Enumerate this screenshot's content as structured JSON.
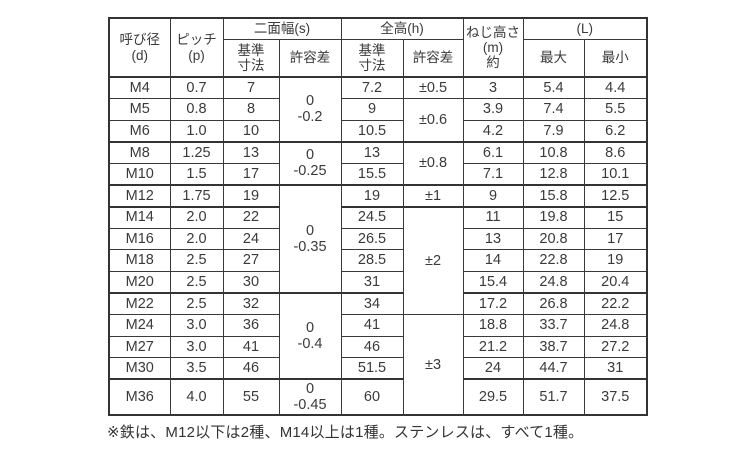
{
  "colors": {
    "background": "#ffffff",
    "text": "#3a3a3a",
    "border": "#333333"
  },
  "table": {
    "header_rows": [
      [
        {
          "text": "呼び径\n(d)",
          "rowspan": 2
        },
        {
          "text": "ピッチ\n(p)",
          "rowspan": 2
        },
        {
          "text": "二面幅(s)",
          "colspan": 2
        },
        {
          "text": "全高(h)",
          "colspan": 2
        },
        {
          "text": "ねじ高さ\n(m)\n約",
          "rowspan": 2
        },
        {
          "text": "(L)",
          "colspan": 2
        }
      ],
      [
        {
          "text": "基準\n寸法"
        },
        {
          "text": "許容差"
        },
        {
          "text": "基準\n寸法"
        },
        {
          "text": "許容差"
        },
        {
          "text": "最大"
        },
        {
          "text": "最小"
        }
      ]
    ],
    "rows": [
      {
        "name": "M4",
        "thick_top": false,
        "tall": false,
        "cells": [
          {
            "text": "M4"
          },
          {
            "text": "0.7"
          },
          {
            "text": "7"
          },
          {
            "text": "0\n-0.2",
            "rowspan": 3
          },
          {
            "text": "7.2"
          },
          {
            "text": "±0.5"
          },
          {
            "text": "3"
          },
          {
            "text": "5.4"
          },
          {
            "text": "4.4"
          }
        ]
      },
      {
        "name": "M5",
        "thick_top": false,
        "tall": false,
        "cells": [
          {
            "text": "M5"
          },
          {
            "text": "0.8"
          },
          {
            "text": "8"
          },
          {
            "text": "9"
          },
          {
            "text": "±0.6",
            "rowspan": 2
          },
          {
            "text": "3.9"
          },
          {
            "text": "7.4"
          },
          {
            "text": "5.5"
          }
        ]
      },
      {
        "name": "M6",
        "thick_top": false,
        "tall": false,
        "cells": [
          {
            "text": "M6"
          },
          {
            "text": "1.0"
          },
          {
            "text": "10"
          },
          {
            "text": "10.5"
          },
          {
            "text": "4.2"
          },
          {
            "text": "7.9"
          },
          {
            "text": "6.2"
          }
        ]
      },
      {
        "name": "M8",
        "thick_top": true,
        "tall": false,
        "cells": [
          {
            "text": "M8"
          },
          {
            "text": "1.25"
          },
          {
            "text": "13"
          },
          {
            "text": "0\n-0.25",
            "rowspan": 2
          },
          {
            "text": "13"
          },
          {
            "text": "±0.8",
            "rowspan": 2
          },
          {
            "text": "6.1"
          },
          {
            "text": "10.8"
          },
          {
            "text": "8.6"
          }
        ]
      },
      {
        "name": "M10",
        "thick_top": false,
        "tall": false,
        "cells": [
          {
            "text": "M10"
          },
          {
            "text": "1.5"
          },
          {
            "text": "17"
          },
          {
            "text": "15.5"
          },
          {
            "text": "7.1"
          },
          {
            "text": "12.8"
          },
          {
            "text": "10.1"
          }
        ]
      },
      {
        "name": "M12",
        "thick_top": true,
        "tall": false,
        "cells": [
          {
            "text": "M12"
          },
          {
            "text": "1.75"
          },
          {
            "text": "19"
          },
          {
            "text": "0\n-0.35",
            "rowspan": 5
          },
          {
            "text": "19"
          },
          {
            "text": "±1"
          },
          {
            "text": "9"
          },
          {
            "text": "15.8"
          },
          {
            "text": "12.5"
          }
        ]
      },
      {
        "name": "M14",
        "thick_top": true,
        "tall": false,
        "cells": [
          {
            "text": "M14"
          },
          {
            "text": "2.0"
          },
          {
            "text": "22"
          },
          {
            "text": "24.5"
          },
          {
            "text": "±2",
            "rowspan": 5
          },
          {
            "text": "11"
          },
          {
            "text": "19.8"
          },
          {
            "text": "15"
          }
        ]
      },
      {
        "name": "M16",
        "thick_top": false,
        "tall": false,
        "cells": [
          {
            "text": "M16"
          },
          {
            "text": "2.0"
          },
          {
            "text": "24"
          },
          {
            "text": "26.5"
          },
          {
            "text": "13"
          },
          {
            "text": "20.8"
          },
          {
            "text": "17"
          }
        ]
      },
      {
        "name": "M18",
        "thick_top": false,
        "tall": false,
        "cells": [
          {
            "text": "M18"
          },
          {
            "text": "2.5"
          },
          {
            "text": "27"
          },
          {
            "text": "28.5"
          },
          {
            "text": "14"
          },
          {
            "text": "22.8"
          },
          {
            "text": "19"
          }
        ]
      },
      {
        "name": "M20",
        "thick_top": false,
        "tall": false,
        "cells": [
          {
            "text": "M20"
          },
          {
            "text": "2.5"
          },
          {
            "text": "30"
          },
          {
            "text": "31"
          },
          {
            "text": "15.4"
          },
          {
            "text": "24.8"
          },
          {
            "text": "20.4"
          }
        ]
      },
      {
        "name": "M22",
        "thick_top": true,
        "tall": false,
        "cells": [
          {
            "text": "M22"
          },
          {
            "text": "2.5"
          },
          {
            "text": "32"
          },
          {
            "text": "0\n-0.4",
            "rowspan": 4
          },
          {
            "text": "34"
          },
          {
            "text": "17.2"
          },
          {
            "text": "26.8"
          },
          {
            "text": "22.2"
          }
        ]
      },
      {
        "name": "M24",
        "thick_top": false,
        "tall": false,
        "cells": [
          {
            "text": "M24"
          },
          {
            "text": "3.0"
          },
          {
            "text": "36"
          },
          {
            "text": "41"
          },
          {
            "text": "±3",
            "rowspan": 4
          },
          {
            "text": "18.8"
          },
          {
            "text": "33.7"
          },
          {
            "text": "24.8"
          }
        ]
      },
      {
        "name": "M27",
        "thick_top": false,
        "tall": false,
        "cells": [
          {
            "text": "M27"
          },
          {
            "text": "3.0"
          },
          {
            "text": "41"
          },
          {
            "text": "46"
          },
          {
            "text": "21.2"
          },
          {
            "text": "38.7"
          },
          {
            "text": "27.2"
          }
        ]
      },
      {
        "name": "M30",
        "thick_top": false,
        "tall": false,
        "cells": [
          {
            "text": "M30"
          },
          {
            "text": "3.5"
          },
          {
            "text": "46"
          },
          {
            "text": "51.5"
          },
          {
            "text": "24"
          },
          {
            "text": "44.7"
          },
          {
            "text": "31"
          }
        ]
      },
      {
        "name": "M36",
        "thick_top": true,
        "tall": true,
        "cells": [
          {
            "text": "M36"
          },
          {
            "text": "4.0"
          },
          {
            "text": "55"
          },
          {
            "text": "0\n-0.45"
          },
          {
            "text": "60"
          },
          {
            "text": "29.5"
          },
          {
            "text": "51.7"
          },
          {
            "text": "37.5"
          }
        ]
      }
    ]
  },
  "footnote": "※鉄は、M12以下は2種、M14以上は1種。ステンレスは、すべて1種。"
}
